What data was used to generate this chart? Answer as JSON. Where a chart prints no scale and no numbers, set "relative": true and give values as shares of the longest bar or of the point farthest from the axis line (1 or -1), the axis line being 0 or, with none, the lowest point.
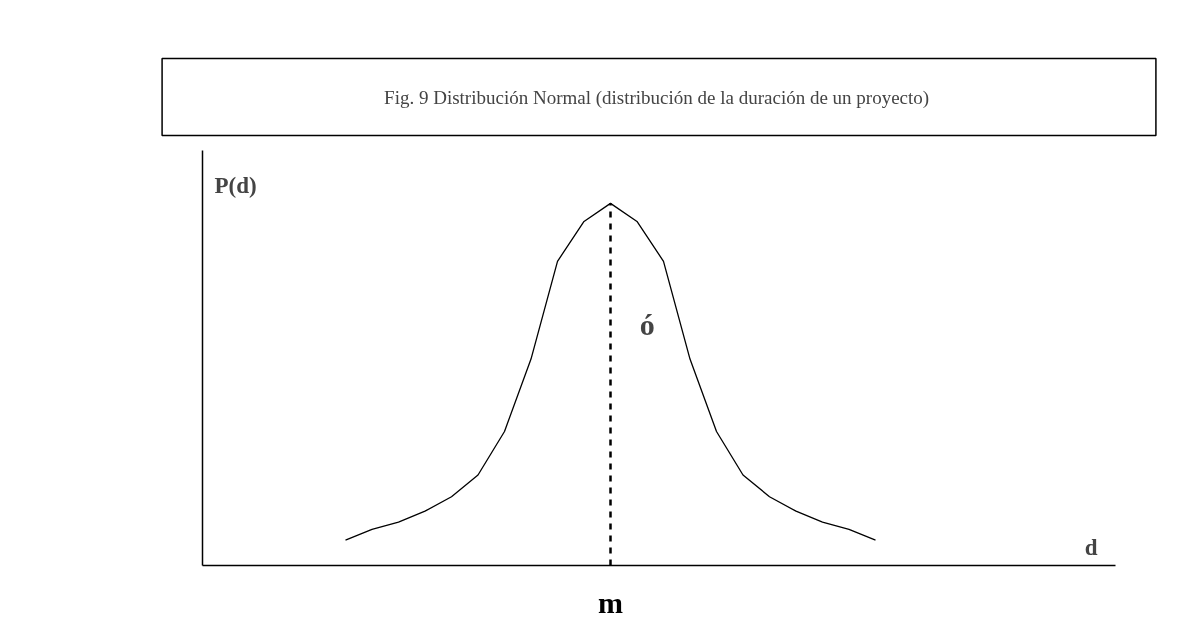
{
  "chart_data": {
    "type": "line",
    "title": "Fig. 9 Distribución Normal (distribución de la duración  de un proyecto)",
    "ylabel": "P(d)",
    "relative": true,
    "color": "#000000",
    "categories": [
      null,
      null,
      null,
      null,
      null,
      null,
      null,
      null,
      null,
      null,
      null,
      null,
      null,
      null,
      null,
      null,
      null,
      null,
      null,
      null,
      null
    ],
    "values": [
      0.07,
      0.1,
      0.12,
      0.15,
      0.19,
      0.25,
      0.37,
      0.57,
      0.84,
      0.95,
      1,
      0.95,
      0.84,
      0.57,
      0.37,
      0.25,
      0.19,
      0.15,
      0.12,
      0.1,
      0.07
    ],
    "ref_lines": [
      {
        "axis": "x",
        "label": "m",
        "line_style": "dashed",
        "color": "#000000"
      }
    ],
    "annotations": [
      "ó",
      "d"
    ],
    "grid": false,
    "legend": false,
    "marker": "none",
    "line_style": "solid"
  }
}
